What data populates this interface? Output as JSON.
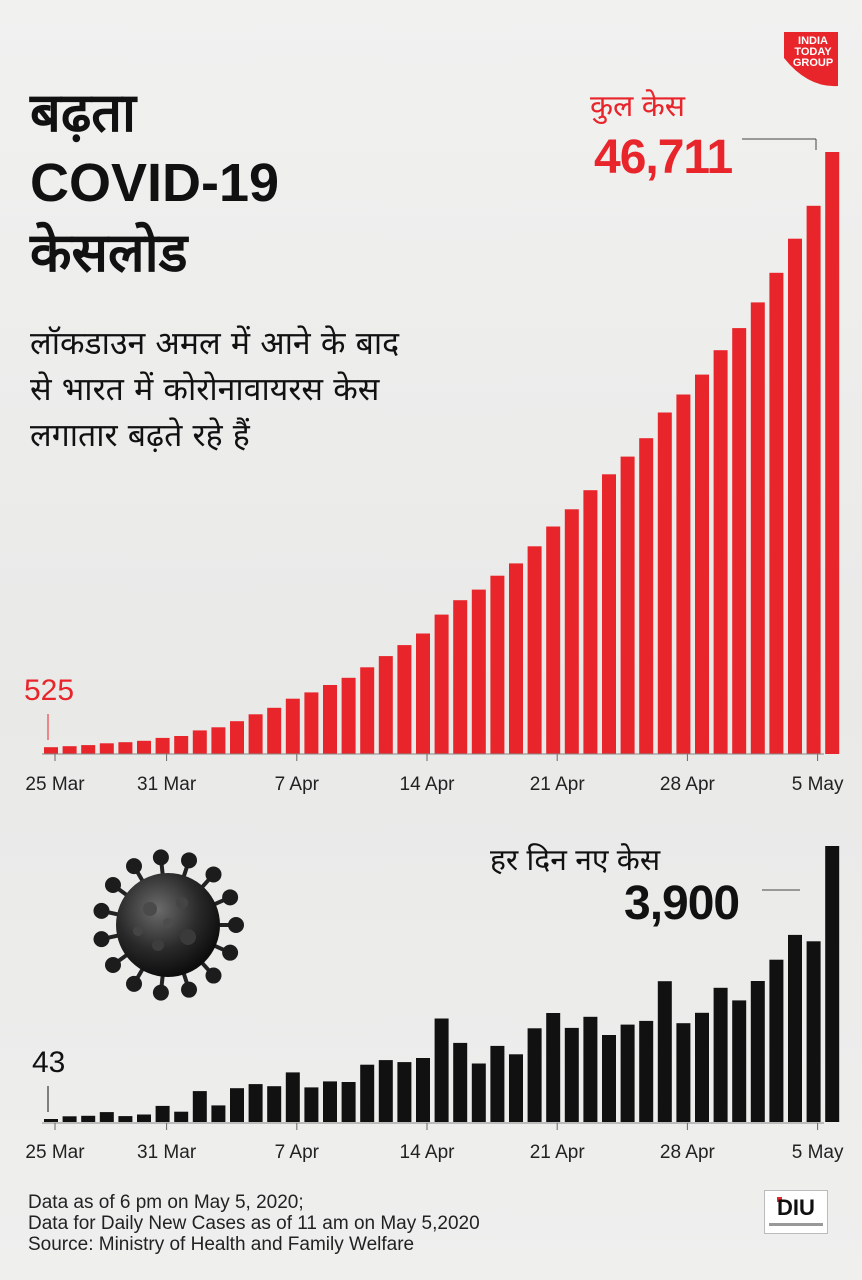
{
  "title": [
    "बढ़ता",
    "COVID-19",
    "केसलोड"
  ],
  "subtitle": "लॉकडाउन अमल में आने के बाद से भारत में कोरोनावायरस केस लगातार बढ़ते रहे हैं",
  "logo": {
    "lines": [
      "INDIA",
      "TODAY",
      "GROUP"
    ],
    "color": "#e8252b"
  },
  "colors": {
    "total": "#e8252b",
    "daily": "#111111",
    "background": "#ececec"
  },
  "labels": {
    "total_title": "कुल केस",
    "total_value": "46,711",
    "total_start": "525",
    "daily_title": "हर दिन नए केस",
    "daily_value": "3,900",
    "daily_start": "43"
  },
  "footer": [
    "Data as of 6 pm on May 5, 2020;",
    "Data for Daily New Cases as of 11 am on May 5,2020",
    "Source: Ministry of Health and Family Welfare"
  ],
  "diu_logo": "DIU",
  "virus_icon": "coronavirus-icon",
  "chart_data": [
    {
      "type": "bar",
      "series": [
        {
          "name": "कुल केस",
          "color": "#e8252b"
        }
      ],
      "x_ticks": [
        "25 Mar",
        "31 Mar",
        "7 Apr",
        "14 Apr",
        "21 Apr",
        "28 Apr",
        "5 May"
      ],
      "x_tick_index": [
        0,
        6,
        13,
        20,
        27,
        34,
        41
      ],
      "values": [
        525,
        606,
        694,
        834,
        918,
        1024,
        1251,
        1397,
        1834,
        2069,
        2547,
        3082,
        3588,
        4289,
        4778,
        5351,
        5916,
        6725,
        7600,
        8447,
        9352,
        10815,
        11933,
        12759,
        13835,
        14792,
        16116,
        17656,
        18985,
        20471,
        21700,
        23077,
        24506,
        26496,
        27892,
        29435,
        31332,
        33050,
        35043,
        37336,
        39980,
        42533,
        46711
      ],
      "ylim": [
        0,
        46711
      ],
      "annotations": [
        {
          "label": "46,711",
          "index": 42
        },
        {
          "label": "525",
          "index": 0
        }
      ]
    },
    {
      "type": "bar",
      "series": [
        {
          "name": "हर दिन नए केस",
          "color": "#111111"
        }
      ],
      "x_ticks": [
        "25 Mar",
        "31 Mar",
        "7 Apr",
        "14 Apr",
        "21 Apr",
        "28 Apr",
        "5 May"
      ],
      "x_tick_index": [
        0,
        6,
        13,
        20,
        27,
        34,
        41
      ],
      "values": [
        43,
        81,
        88,
        140,
        84,
        106,
        227,
        146,
        437,
        235,
        478,
        535,
        506,
        701,
        489,
        573,
        565,
        809,
        875,
        847,
        905,
        1463,
        1118,
        826,
        1076,
        957,
        1324,
        1540,
        1329,
        1486,
        1229,
        1377,
        1429,
        1990,
        1396,
        1543,
        1897,
        1718,
        1993,
        2293,
        2644,
        2553,
        3900
      ],
      "ylim": [
        0,
        3900
      ],
      "annotations": [
        {
          "label": "3,900",
          "index": 42
        },
        {
          "label": "43",
          "index": 0
        }
      ]
    }
  ]
}
